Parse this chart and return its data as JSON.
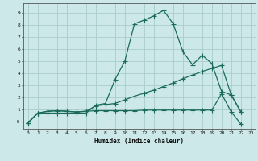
{
  "xlabel": "Humidex (Indice chaleur)",
  "xlim": [
    -0.5,
    23.5
  ],
  "ylim": [
    -0.6,
    9.8
  ],
  "yticks": [
    0,
    1,
    2,
    3,
    4,
    5,
    6,
    7,
    8,
    9
  ],
  "ytick_labels": [
    "-0",
    "1",
    "2",
    "3",
    "4",
    "5",
    "6",
    "7",
    "8",
    "9"
  ],
  "xticks": [
    0,
    1,
    2,
    3,
    4,
    5,
    6,
    7,
    8,
    9,
    10,
    11,
    12,
    13,
    14,
    15,
    16,
    17,
    18,
    19,
    20,
    21,
    22,
    23
  ],
  "bg_color": "#cce8e8",
  "grid_color": "#aacccc",
  "line_color": "#1a6b5a",
  "line1_x": [
    0,
    1,
    2,
    3,
    4,
    5,
    6,
    7,
    8,
    9,
    10,
    11,
    12,
    13,
    14,
    15,
    16,
    17,
    18,
    19,
    20,
    21,
    22
  ],
  "line1_y": [
    -0.1,
    0.7,
    0.7,
    0.7,
    0.7,
    0.7,
    0.7,
    1.35,
    1.5,
    3.5,
    5.0,
    8.1,
    8.4,
    8.75,
    9.2,
    8.1,
    5.8,
    4.7,
    5.5,
    4.8,
    2.5,
    2.2,
    0.8
  ],
  "line2_x": [
    0,
    1,
    2,
    3,
    4,
    5,
    6,
    7,
    8,
    9,
    10,
    11,
    12,
    13,
    14,
    15,
    16,
    17,
    18,
    19,
    20,
    21,
    22
  ],
  "line2_y": [
    -0.1,
    0.7,
    0.85,
    0.9,
    0.85,
    0.8,
    0.85,
    1.3,
    1.4,
    1.5,
    1.8,
    2.1,
    2.35,
    2.6,
    2.9,
    3.2,
    3.55,
    3.85,
    4.15,
    4.4,
    4.65,
    2.2,
    0.8
  ],
  "line3_x": [
    0,
    1,
    2,
    3,
    4,
    5,
    6,
    7,
    8,
    9,
    10,
    11,
    12,
    13,
    14,
    15,
    16,
    17,
    18,
    19,
    20,
    21,
    22
  ],
  "line3_y": [
    -0.1,
    0.7,
    0.85,
    0.9,
    0.85,
    0.8,
    0.85,
    0.9,
    0.9,
    0.9,
    0.9,
    0.9,
    0.95,
    0.95,
    0.95,
    0.95,
    0.95,
    0.95,
    0.95,
    0.95,
    2.3,
    0.8,
    -0.2
  ]
}
